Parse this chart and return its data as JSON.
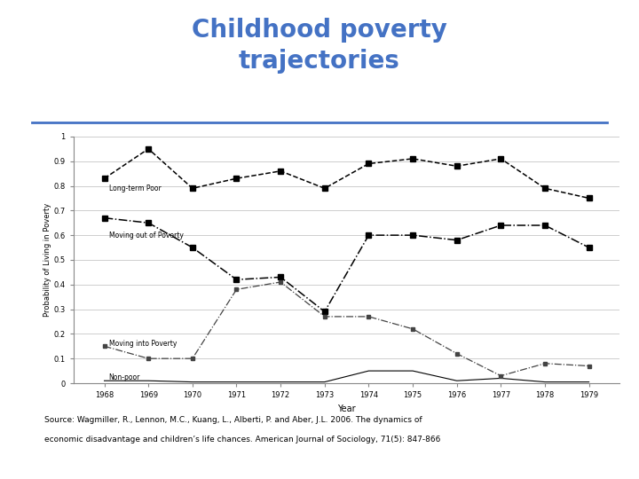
{
  "title": "Childhood poverty\ntrajectories",
  "title_color": "#4472C4",
  "title_fontsize": 20,
  "source_text_line1": "Source: Wagmiller, R., Lennon, M.C., Kuang, L., Alberti, P. and Aber, J.L. 2006. The dynamics of",
  "source_text_line2": "economic disadvantage and children’s life chances. American Journal of Sociology, 71(5): 847-866",
  "xlabel": "Year",
  "ylabel": "Probability of Living in Poverty",
  "years": [
    1968,
    1969,
    1970,
    1971,
    1972,
    1973,
    1974,
    1975,
    1976,
    1977,
    1978,
    1979
  ],
  "long_term_poor": [
    0.83,
    0.95,
    0.79,
    0.83,
    0.86,
    0.79,
    0.89,
    0.91,
    0.88,
    0.91,
    0.79,
    0.75
  ],
  "moving_out": [
    0.67,
    0.65,
    0.55,
    0.42,
    0.43,
    0.29,
    0.6,
    0.6,
    0.58,
    0.64,
    0.64,
    0.55
  ],
  "moving_in": [
    0.15,
    0.1,
    0.1,
    0.38,
    0.41,
    0.27,
    0.27,
    0.22,
    0.12,
    0.03,
    0.08,
    0.07
  ],
  "non_poor": [
    0.01,
    0.01,
    0.005,
    0.005,
    0.005,
    0.005,
    0.05,
    0.05,
    0.01,
    0.02,
    0.005,
    0.005
  ],
  "bg_color": "#ffffff",
  "line_color": "#000000",
  "separator_color": "#4472C4",
  "ylim": [
    0,
    1.0
  ],
  "yticks": [
    0,
    0.1,
    0.2,
    0.3,
    0.4,
    0.5,
    0.6,
    0.7,
    0.8,
    0.9,
    1
  ]
}
